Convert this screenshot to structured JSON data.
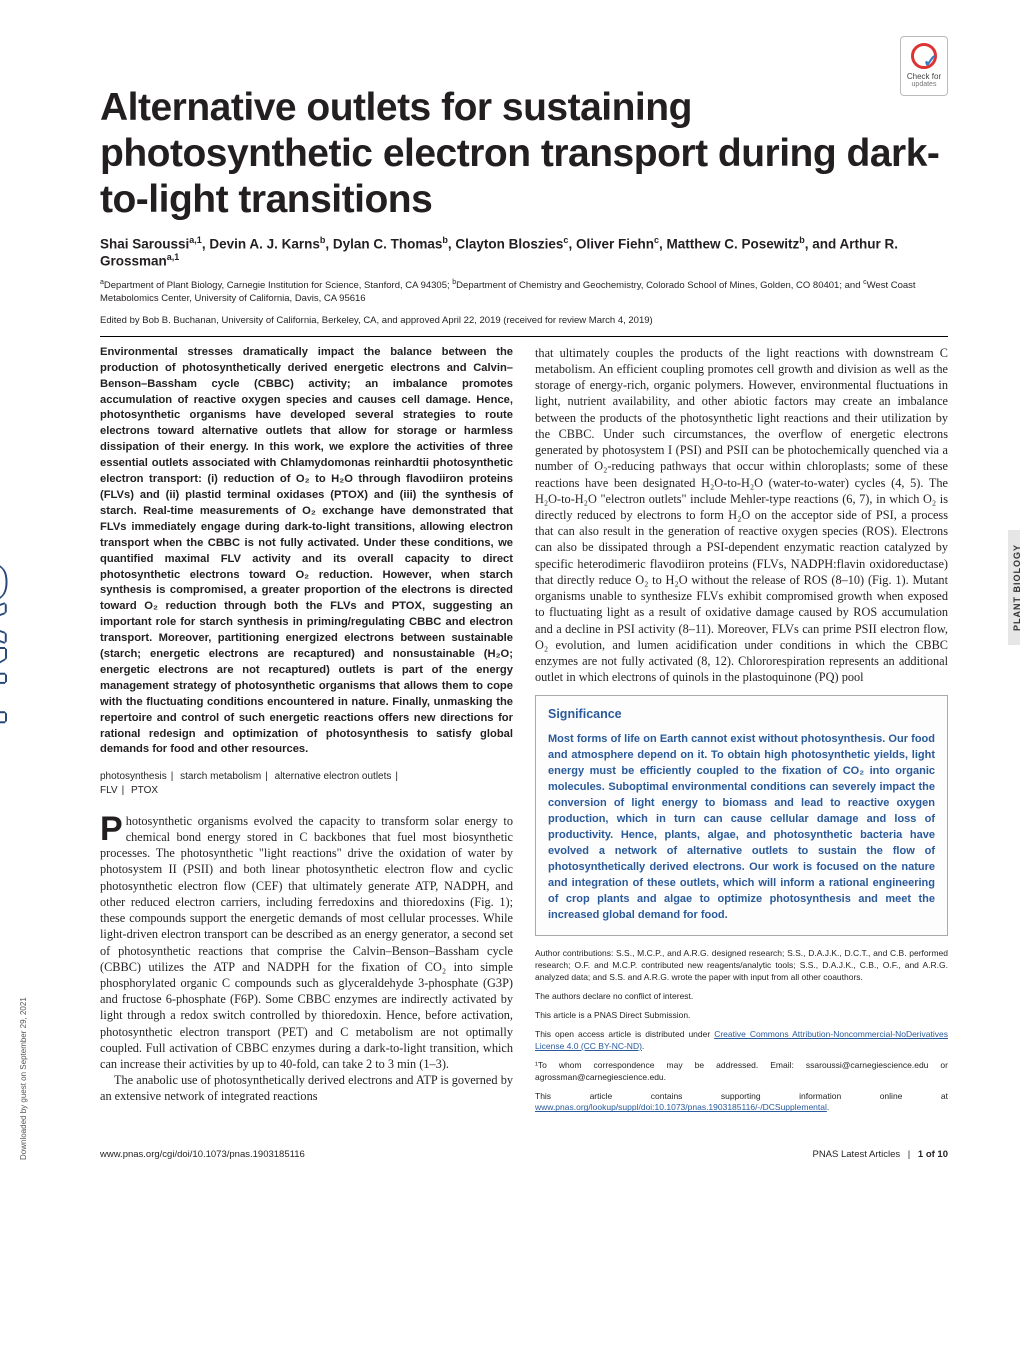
{
  "journal": {
    "spine": "PNAS",
    "section_tab": "PLANT BIOLOGY"
  },
  "download_note": "Downloaded by guest on September 29, 2021",
  "crossmark": {
    "line1": "Check for",
    "line2": "updates"
  },
  "title": "Alternative outlets for sustaining photosynthetic electron transport during dark-to-light transitions",
  "authors_html": "Shai Saroussi<sup>a,1</sup>, Devin A. J. Karns<sup>b</sup>, Dylan C. Thomas<sup>b</sup>, Clayton Bloszies<sup>c</sup>, Oliver Fiehn<sup>c</sup>, Matthew C. Posewitz<sup>b</sup>, and Arthur R. Grossman<sup>a,1</sup>",
  "affiliations_html": "<sup>a</sup>Department of Plant Biology, Carnegie Institution for Science, Stanford, CA 94305; <sup>b</sup>Department of Chemistry and Geochemistry, Colorado School of Mines, Golden, CO 80401; and <sup>c</sup>West Coast Metabolomics Center, University of California, Davis, CA 95616",
  "edited": "Edited by Bob B. Buchanan, University of California, Berkeley, CA, and approved April 22, 2019 (received for review March 4, 2019)",
  "abstract": "Environmental stresses dramatically impact the balance between the production of photosynthetically derived energetic electrons and Calvin–Benson–Bassham cycle (CBBC) activity; an imbalance promotes accumulation of reactive oxygen species and causes cell damage. Hence, photosynthetic organisms have developed several strategies to route electrons toward alternative outlets that allow for storage or harmless dissipation of their energy. In this work, we explore the activities of three essential outlets associated with Chlamydomonas reinhardtii photosynthetic electron transport: (i) reduction of O₂ to H₂O through flavodiiron proteins (FLVs) and (ii) plastid terminal oxidases (PTOX) and (iii) the synthesis of starch. Real-time measurements of O₂ exchange have demonstrated that FLVs immediately engage during dark-to-light transitions, allowing electron transport when the CBBC is not fully activated. Under these conditions, we quantified maximal FLV activity and its overall capacity to direct photosynthetic electrons toward O₂ reduction. However, when starch synthesis is compromised, a greater proportion of the electrons is directed toward O₂ reduction through both the FLVs and PTOX, suggesting an important role for starch synthesis in priming/regulating CBBC and electron transport. Moreover, partitioning energized electrons between sustainable (starch; energetic electrons are recaptured) and nonsustainable (H₂O; energetic electrons are not recaptured) outlets is part of the energy management strategy of photosynthetic organisms that allows them to cope with the fluctuating conditions encountered in nature. Finally, unmasking the repertoire and control of such energetic reactions offers new directions for rational redesign and optimization of photosynthesis to satisfy global demands for food and other resources.",
  "keywords": [
    "photosynthesis",
    "starch metabolism",
    "alternative electron outlets",
    "FLV",
    "PTOX"
  ],
  "body": {
    "p1_drop": "P",
    "p1": "hotosynthetic organisms evolved the capacity to transform solar energy to chemical bond energy stored in C backbones that fuel most biosynthetic processes. The photosynthetic \"light reactions\" drive the oxidation of water by photosystem II (PSII) and both linear photosynthetic electron flow and cyclic photosynthetic electron flow (CEF) that ultimately generate ATP, NADPH, and other reduced electron carriers, including ferredoxins and thioredoxins (Fig. 1); these compounds support the energetic demands of most cellular processes. While light-driven electron transport can be described as an energy generator, a second set of photosynthetic reactions that comprise the Calvin–Benson–Bassham cycle (CBBC) utilizes the ATP and NADPH for the fixation of CO₂ into simple phosphorylated organic C compounds such as glyceraldehyde 3-phosphate (G3P) and fructose 6-phosphate (F6P). Some CBBC enzymes are indirectly activated by light through a redox switch controlled by thioredoxin. Hence, before activation, photosynthetic electron transport (PET) and C metabolism are not optimally coupled. Full activation of CBBC enzymes during a dark-to-light transition, which can increase their activities by up to 40-fold, can take 2 to 3 min (1–3).",
    "p2": "The anabolic use of photosynthetically derived electrons and ATP is governed by an extensive network of integrated reactions",
    "p3": "that ultimately couples the products of the light reactions with downstream C metabolism. An efficient coupling promotes cell growth and division as well as the storage of energy-rich, organic polymers. However, environmental fluctuations in light, nutrient availability, and other abiotic factors may create an imbalance between the products of the photosynthetic light reactions and their utilization by the CBBC. Under such circumstances, the overflow of energetic electrons generated by photosystem I (PSI) and PSII can be photochemically quenched via a number of O₂-reducing pathways that occur within chloroplasts; some of these reactions have been designated H₂O-to-H₂O (water-to-water) cycles (4, 5). The H₂O-to-H₂O \"electron outlets\" include Mehler-type reactions (6, 7), in which O₂ is directly reduced by electrons to form H₂O on the acceptor side of PSI, a process that can also result in the generation of reactive oxygen species (ROS). Electrons can also be dissipated through a PSI-dependent enzymatic reaction catalyzed by specific heterodimeric flavodiiron proteins (FLVs, NADPH:flavin oxidoreductase) that directly reduce O₂ to H₂O without the release of ROS (8–10) (Fig. 1). Mutant organisms unable to synthesize FLVs exhibit compromised growth when exposed to fluctuating light as a result of oxidative damage caused by ROS accumulation and a decline in PSI activity (8–11). Moreover, FLVs can prime PSII electron flow, O₂ evolution, and lumen acidification under conditions in which the CBBC enzymes are not fully activated (8, 12). Chlororespiration represents an additional outlet in which electrons of quinols in the plastoquinone (PQ) pool"
  },
  "significance": {
    "heading": "Significance",
    "text": "Most forms of life on Earth cannot exist without photosynthesis. Our food and atmosphere depend on it. To obtain high photosynthetic yields, light energy must be efficiently coupled to the fixation of CO₂ into organic molecules. Suboptimal environmental conditions can severely impact the conversion of light energy to biomass and lead to reactive oxygen production, which in turn can cause cellular damage and loss of productivity. Hence, plants, algae, and photosynthetic bacteria have evolved a network of alternative outlets to sustain the flow of photosynthetically derived electrons. Our work is focused on the nature and integration of these outlets, which will inform a rational engineering of crop plants and algae to optimize photosynthesis and meet the increased global demand for food."
  },
  "meta": {
    "contrib": "Author contributions: S.S., M.C.P., and A.R.G. designed research; S.S., D.A.J.K., D.C.T., and C.B. performed research; O.F. and M.C.P. contributed new reagents/analytic tools; S.S., D.A.J.K., C.B., O.F., and A.R.G. analyzed data; and S.S. and A.R.G. wrote the paper with input from all other coauthors.",
    "coi": "The authors declare no conflict of interest.",
    "direct": "This article is a PNAS Direct Submission.",
    "license_pre": "This open access article is distributed under ",
    "license_link": "Creative Commons Attribution-Noncommercial-NoDerivatives License 4.0 (CC BY-NC-ND)",
    "license_post": ".",
    "corr": "¹To whom correspondence may be addressed. Email: ssaroussi@carnegiescience.edu or agrossman@carnegiescience.edu.",
    "si_pre": "This article contains supporting information online at ",
    "si_link": "www.pnas.org/lookup/suppl/doi:10.1073/pnas.1903185116/-/DCSupplemental",
    "si_post": "."
  },
  "footer": {
    "doi": "www.pnas.org/cgi/doi/10.1073/pnas.1903185116",
    "right_pre": "PNAS Latest Articles",
    "right_page": "1 of 10"
  },
  "colors": {
    "accent_blue": "#2a5a9a",
    "text": "#231f20",
    "spine_outline": "#2a4a7a",
    "tab_bg": "#e6e6e6"
  },
  "typography": {
    "title_pt": 39,
    "body_pt": 12.3,
    "abstract_pt": 11.2,
    "meta_pt": 8.5
  }
}
